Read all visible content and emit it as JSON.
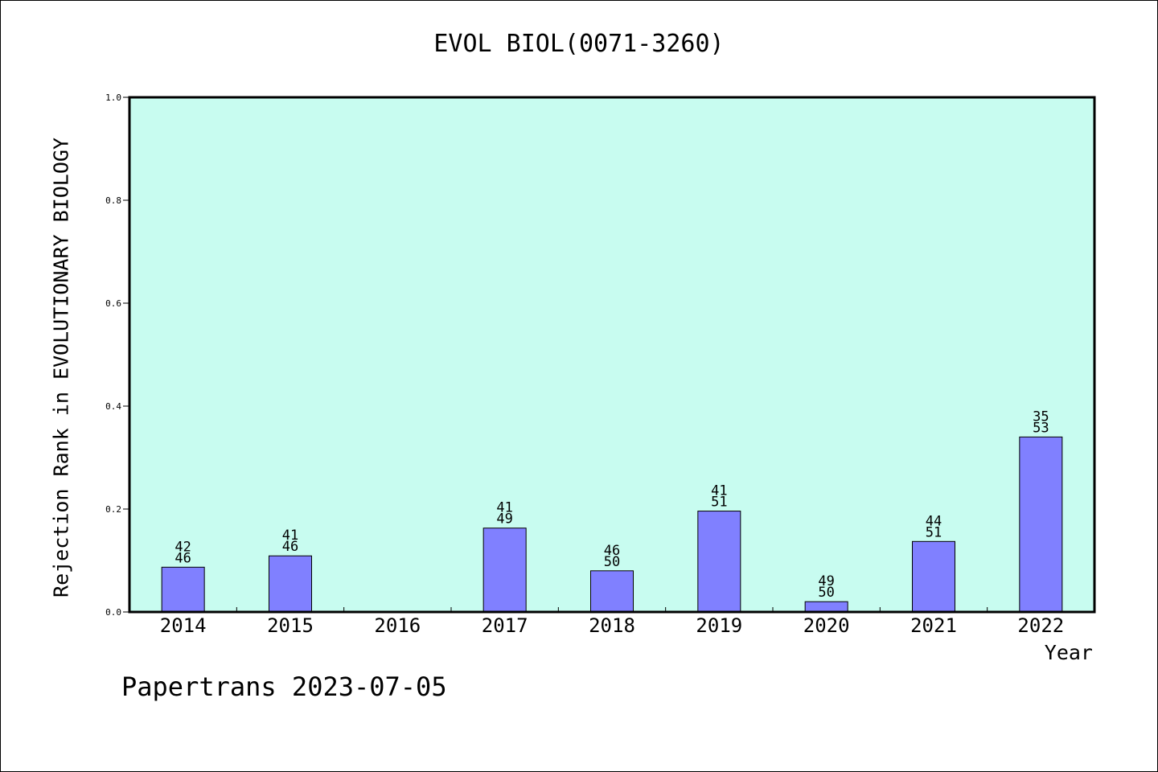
{
  "title": "EVOL BIOL(0071-3260)",
  "footer": "Papertrans 2023-07-05",
  "chart_data": {
    "type": "bar",
    "title": "EVOL BIOL(0071-3260)",
    "xlabel": "Year",
    "ylabel": "Rejection Rank in EVOLUTIONARY BIOLOGY",
    "ylim": [
      0,
      1.0
    ],
    "yticks": [
      "0.0",
      "0.2",
      "0.4",
      "0.6",
      "0.8",
      "1.0"
    ],
    "ytick_values": [
      0,
      0.2,
      0.4,
      0.6,
      0.8,
      1.0
    ],
    "grid": false,
    "categories": [
      "2014",
      "2015",
      "2016",
      "2017",
      "2018",
      "2019",
      "2020",
      "2021",
      "2022"
    ],
    "values": [
      0.087,
      0.109,
      null,
      0.163,
      0.08,
      0.196,
      0.02,
      0.137,
      0.34
    ],
    "label_top": [
      "42",
      "41",
      "",
      "41",
      "46",
      "41",
      "49",
      "44",
      "35"
    ],
    "label_bottom": [
      "46",
      "46",
      "",
      "49",
      "50",
      "51",
      "50",
      "51",
      "53"
    ],
    "colors": {
      "plot_background": "#c8fcf0",
      "bar_fill": "#8080ff",
      "bar_stroke": "#000000",
      "axis": "#000000"
    }
  }
}
